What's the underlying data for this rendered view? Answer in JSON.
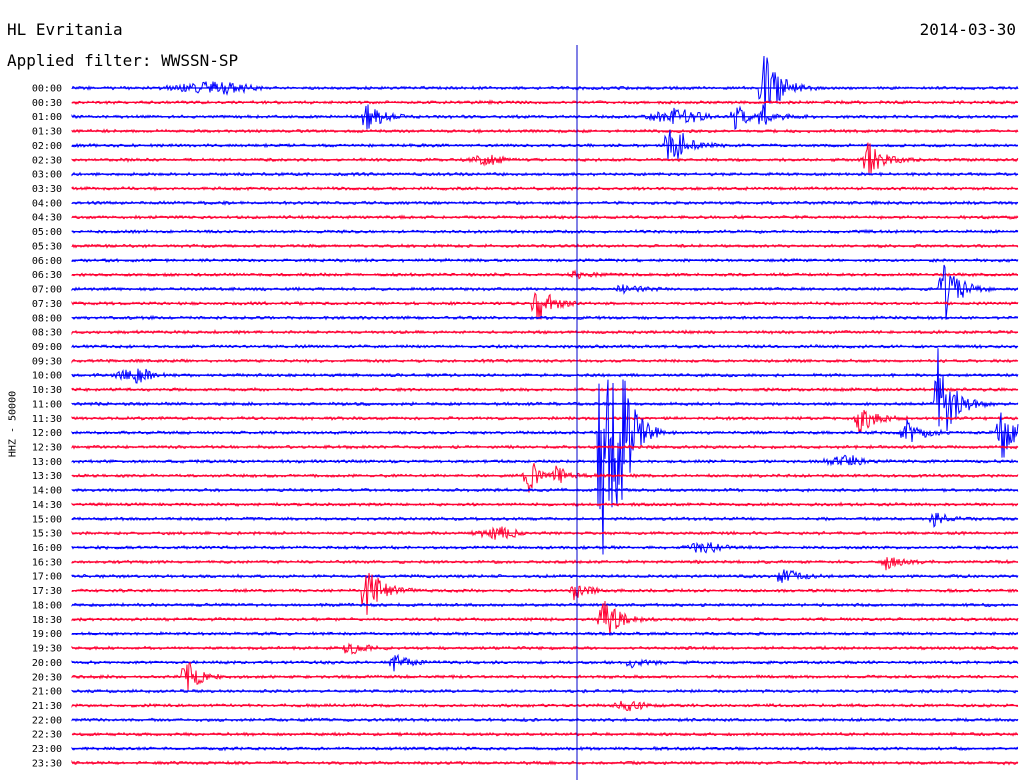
{
  "header": {
    "station": "HL Evritania",
    "date": "2014-03-30",
    "filter": "Applied filter: WWSSN-SP"
  },
  "chart_data": {
    "type": "line",
    "title": "HL Evritania",
    "ylabel": "HHZ - 50000",
    "times": [
      "00:00",
      "00:30",
      "01:00",
      "01:30",
      "02:00",
      "02:30",
      "03:00",
      "03:30",
      "04:00",
      "04:30",
      "05:00",
      "05:30",
      "06:00",
      "06:30",
      "07:00",
      "07:30",
      "08:00",
      "08:30",
      "09:00",
      "09:30",
      "10:00",
      "10:30",
      "11:00",
      "11:30",
      "12:00",
      "12:30",
      "13:00",
      "13:30",
      "14:00",
      "14:30",
      "15:00",
      "15:30",
      "16:00",
      "16:30",
      "17:00",
      "17:30",
      "18:00",
      "18:30",
      "19:00",
      "19:30",
      "20:00",
      "20:30",
      "21:00",
      "21:30",
      "22:00",
      "22:30",
      "23:00",
      "23:30"
    ],
    "colors": {
      "even": "#0000ff",
      "odd": "#ff0033"
    },
    "events": [
      {
        "row": 0,
        "x": 0.15,
        "amp": 6,
        "type": "burst",
        "w": 0.06
      },
      {
        "row": 0,
        "x": 0.73,
        "amp": 48,
        "type": "spike"
      },
      {
        "row": 2,
        "x": 0.31,
        "amp": 18,
        "type": "spike"
      },
      {
        "row": 2,
        "x": 0.64,
        "amp": 8,
        "type": "burst",
        "w": 0.04
      },
      {
        "row": 2,
        "x": 0.7,
        "amp": 14,
        "type": "spike"
      },
      {
        "row": 2,
        "x": 0.73,
        "amp": 10,
        "type": "spike"
      },
      {
        "row": 4,
        "x": 0.63,
        "amp": 36,
        "type": "spike"
      },
      {
        "row": 5,
        "x": 0.44,
        "amp": 4,
        "type": "burst",
        "w": 0.03
      },
      {
        "row": 5,
        "x": 0.84,
        "amp": 22,
        "type": "spike"
      },
      {
        "row": 13,
        "x": 0.53,
        "amp": 6,
        "type": "spike"
      },
      {
        "row": 14,
        "x": 0.58,
        "amp": 6,
        "type": "spike"
      },
      {
        "row": 14,
        "x": 0.92,
        "amp": 40,
        "type": "spike"
      },
      {
        "row": 15,
        "x": 0.49,
        "amp": 24,
        "type": "spike"
      },
      {
        "row": 20,
        "x": 0.07,
        "amp": 7,
        "type": "burst",
        "w": 0.03
      },
      {
        "row": 22,
        "x": 0.915,
        "amp": 60,
        "type": "spike"
      },
      {
        "row": 23,
        "x": 0.83,
        "amp": 20,
        "type": "spike"
      },
      {
        "row": 24,
        "x": 0.56,
        "amp": 190,
        "type": "spike"
      },
      {
        "row": 24,
        "x": 0.58,
        "amp": 40,
        "type": "spike"
      },
      {
        "row": 24,
        "x": 0.88,
        "amp": 18,
        "type": "spike"
      },
      {
        "row": 24,
        "x": 0.98,
        "amp": 36,
        "type": "spike"
      },
      {
        "row": 26,
        "x": 0.82,
        "amp": 6,
        "type": "burst",
        "w": 0.03
      },
      {
        "row": 27,
        "x": 0.48,
        "amp": 22,
        "type": "spike"
      },
      {
        "row": 27,
        "x": 0.51,
        "amp": 8,
        "type": "spike"
      },
      {
        "row": 30,
        "x": 0.91,
        "amp": 8,
        "type": "spike"
      },
      {
        "row": 31,
        "x": 0.45,
        "amp": 6,
        "type": "burst",
        "w": 0.03
      },
      {
        "row": 32,
        "x": 0.67,
        "amp": 5,
        "type": "burst",
        "w": 0.03
      },
      {
        "row": 33,
        "x": 0.86,
        "amp": 10,
        "type": "spike"
      },
      {
        "row": 34,
        "x": 0.75,
        "amp": 10,
        "type": "spike"
      },
      {
        "row": 35,
        "x": 0.31,
        "amp": 34,
        "type": "spike"
      },
      {
        "row": 35,
        "x": 0.53,
        "amp": 10,
        "type": "spike"
      },
      {
        "row": 37,
        "x": 0.56,
        "amp": 28,
        "type": "spike"
      },
      {
        "row": 39,
        "x": 0.29,
        "amp": 10,
        "type": "spike"
      },
      {
        "row": 40,
        "x": 0.34,
        "amp": 8,
        "type": "spike"
      },
      {
        "row": 40,
        "x": 0.59,
        "amp": 6,
        "type": "spike"
      },
      {
        "row": 41,
        "x": 0.12,
        "amp": 18,
        "type": "spike"
      },
      {
        "row": 43,
        "x": 0.59,
        "amp": 6,
        "type": "burst",
        "w": 0.02
      }
    ]
  }
}
